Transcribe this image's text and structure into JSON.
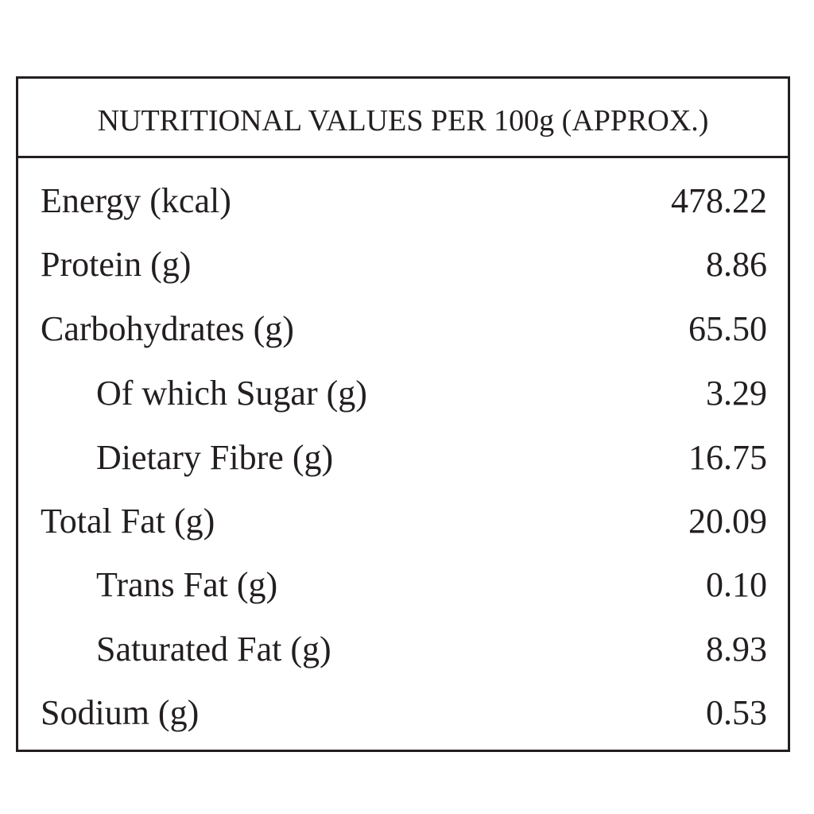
{
  "table": {
    "title": "NUTRITIONAL VALUES PER 100g (APPROX.)",
    "rows": [
      {
        "label": "Energy (kcal)",
        "value": "478.22"
      },
      {
        "label": "Protein (g)",
        "value": "8.86"
      },
      {
        "label": "Carbohydrates (g)",
        "value": "65.50"
      },
      {
        "label": "Of which Sugar (g)",
        "value": "3.29"
      },
      {
        "label": "Dietary Fibre (g)",
        "value": "16.75"
      },
      {
        "label": "Total Fat (g)",
        "value": "20.09"
      },
      {
        "label": "Trans Fat (g)",
        "value": "0.10"
      },
      {
        "label": "Saturated Fat (g)",
        "value": "8.93"
      },
      {
        "label": "Sodium (g)",
        "value": "0.53"
      }
    ]
  },
  "colors": {
    "text": "#231f20",
    "border": "#231f20",
    "background": "#ffffff"
  }
}
